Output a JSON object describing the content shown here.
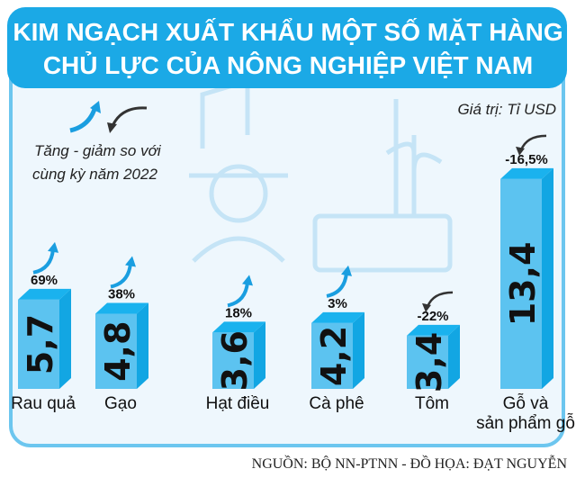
{
  "colors": {
    "banner": "#1ba9e6",
    "frame": "#6cc6ef",
    "panel": "#eef7fd",
    "bar_front": "#5cc3f0",
    "bar_side": "#12a6e3",
    "bar_top": "#1ab2ee",
    "arrow_up": "#1a9ee0",
    "arrow_down": "#333333"
  },
  "chart_data": {
    "type": "bar",
    "title": "KIM NGẠCH XUẤT KHẨU MỘT SỐ MẶT HÀNG CHỦ LỰC CỦA NÔNG NGHIỆP VIỆT NAM",
    "title_lines": [
      "KIM NGẠCH XUẤT KHẨU MỘT SỐ MẶT HÀNG",
      "CHỦ LỰC CỦA NÔNG NGHIỆP VIỆT NAM"
    ],
    "unit_label": "Giá trị: Tỉ USD",
    "legend_lines": [
      "Tăng - giảm so với",
      "cùng kỳ năm 2022"
    ],
    "categories": [
      "Rau quả",
      "Gạo",
      "Hạt điều",
      "Cà phê",
      "Tôm",
      "Gỗ và sản phẩm gỗ"
    ],
    "category_lines": [
      [
        "Rau quả"
      ],
      [
        "Gạo"
      ],
      [
        "Hạt điều"
      ],
      [
        "Cà phê"
      ],
      [
        "Tôm"
      ],
      [
        "Gỗ và",
        "sản phẩm gỗ"
      ]
    ],
    "values": [
      5.7,
      4.8,
      3.6,
      4.2,
      3.4,
      13.4
    ],
    "value_labels": [
      "5,7",
      "4,8",
      "3,6",
      "4,2",
      "3,4",
      "13,4"
    ],
    "changes": [
      "69%",
      "38%",
      "18%",
      "3%",
      "-22%",
      "-16,5%"
    ],
    "change_direction": [
      "up",
      "up",
      "up",
      "up",
      "down",
      "down"
    ],
    "source": "NGUỒN: BỘ NN-PTNN - ĐỒ HỌA: ĐẠT NGUYỄN"
  }
}
